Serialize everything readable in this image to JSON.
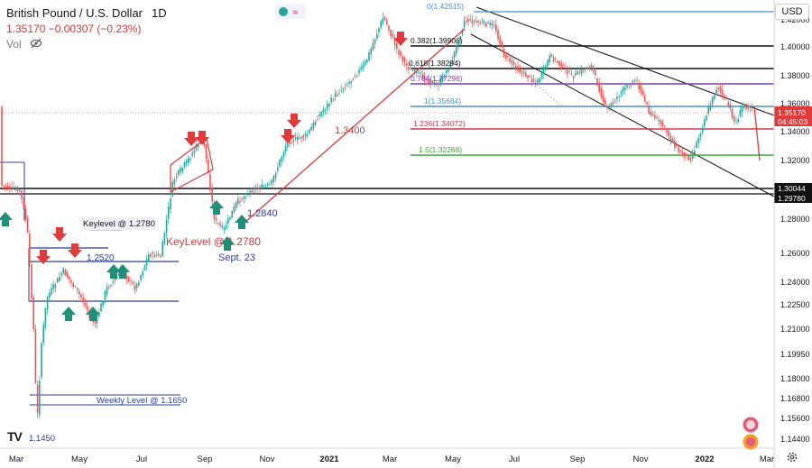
{
  "header": {
    "symbol": "British Pound / U.S. Dollar",
    "timeframe": "1D",
    "price_line": "1.35170  −0.00307 (−0.23%)",
    "volume_label": "Vol"
  },
  "currency_button": "USD",
  "price_tag": {
    "price": "1.35170",
    "countdown": "04:45:03"
  },
  "level_tags": [
    "1.30044",
    "1.29780"
  ],
  "y_ticks": [
    "1.42000",
    "1.40000",
    "1.38000",
    "1.36000",
    "1.34000",
    "1.32000",
    "1.28000",
    "1.26000",
    "1.24000",
    "1.22500",
    "1.21000",
    "1.19950",
    "1.18000",
    "1.16800",
    "1.15600",
    "1.14400"
  ],
  "x_ticks": [
    "Mar",
    "May",
    "Jul",
    "Sep",
    "Nov",
    "2021",
    "Mar",
    "May",
    "Jul",
    "Sep",
    "Nov",
    "2022",
    "Mar"
  ],
  "fib_labels": [
    "0(1.42515)",
    "0.382(1.39906)",
    "0.618(1.38294)",
    "0.764(1.37296)",
    "1(1.35684)",
    "1.236(1.34072)",
    "1.5(1.32268)"
  ],
  "annotations": [
    "Keylevel @ 1.2780",
    "1.2520",
    "KeyLevel @ 1.2780",
    "Sept. 23",
    "1.2840",
    "1.3400",
    "Weekly Level @ 1.1650",
    "1.1450"
  ],
  "colors": {
    "up": "#26a69a",
    "down": "#ef5350",
    "arrow_up": "#1f8f7a",
    "arrow_down": "#e03a3a",
    "blue_line": "#2c3e9a",
    "fib_0": "#4a90c8",
    "fib_382": "#111111",
    "fib_618": "#111111",
    "fib_764": "#7a3fb0",
    "fib_1": "#4a90c8",
    "fib_1236": "#d6334e",
    "fib_15": "#3ca83c"
  },
  "chart_data": {
    "type": "candlestick",
    "title": "British Pound / U.S. Dollar 1D",
    "ylim": [
      1.14,
      1.43
    ],
    "x": [
      "2020-01",
      "2020-02",
      "2020-03",
      "2020-04",
      "2020-05",
      "2020-06",
      "2020-07",
      "2020-08",
      "2020-09",
      "2020-10",
      "2020-11",
      "2020-12",
      "2021-01",
      "2021-02",
      "2021-03",
      "2021-04",
      "2021-05",
      "2021-06",
      "2021-07",
      "2021-08",
      "2021-09",
      "2021-10",
      "2021-11",
      "2021-12",
      "2022-01",
      "2022-02"
    ],
    "close": [
      1.3,
      1.29,
      1.24,
      1.245,
      1.225,
      1.24,
      1.258,
      1.31,
      1.28,
      1.295,
      1.32,
      1.35,
      1.36,
      1.392,
      1.38,
      1.385,
      1.415,
      1.385,
      1.375,
      1.375,
      1.368,
      1.378,
      1.34,
      1.322,
      1.36,
      1.352
    ],
    "fib_levels": [
      1.42515,
      1.39906,
      1.38294,
      1.37296,
      1.35684,
      1.34072,
      1.32268
    ],
    "horizontal_levels": [
      1.30044,
      1.2978
    ],
    "last_price": 1.3517
  }
}
